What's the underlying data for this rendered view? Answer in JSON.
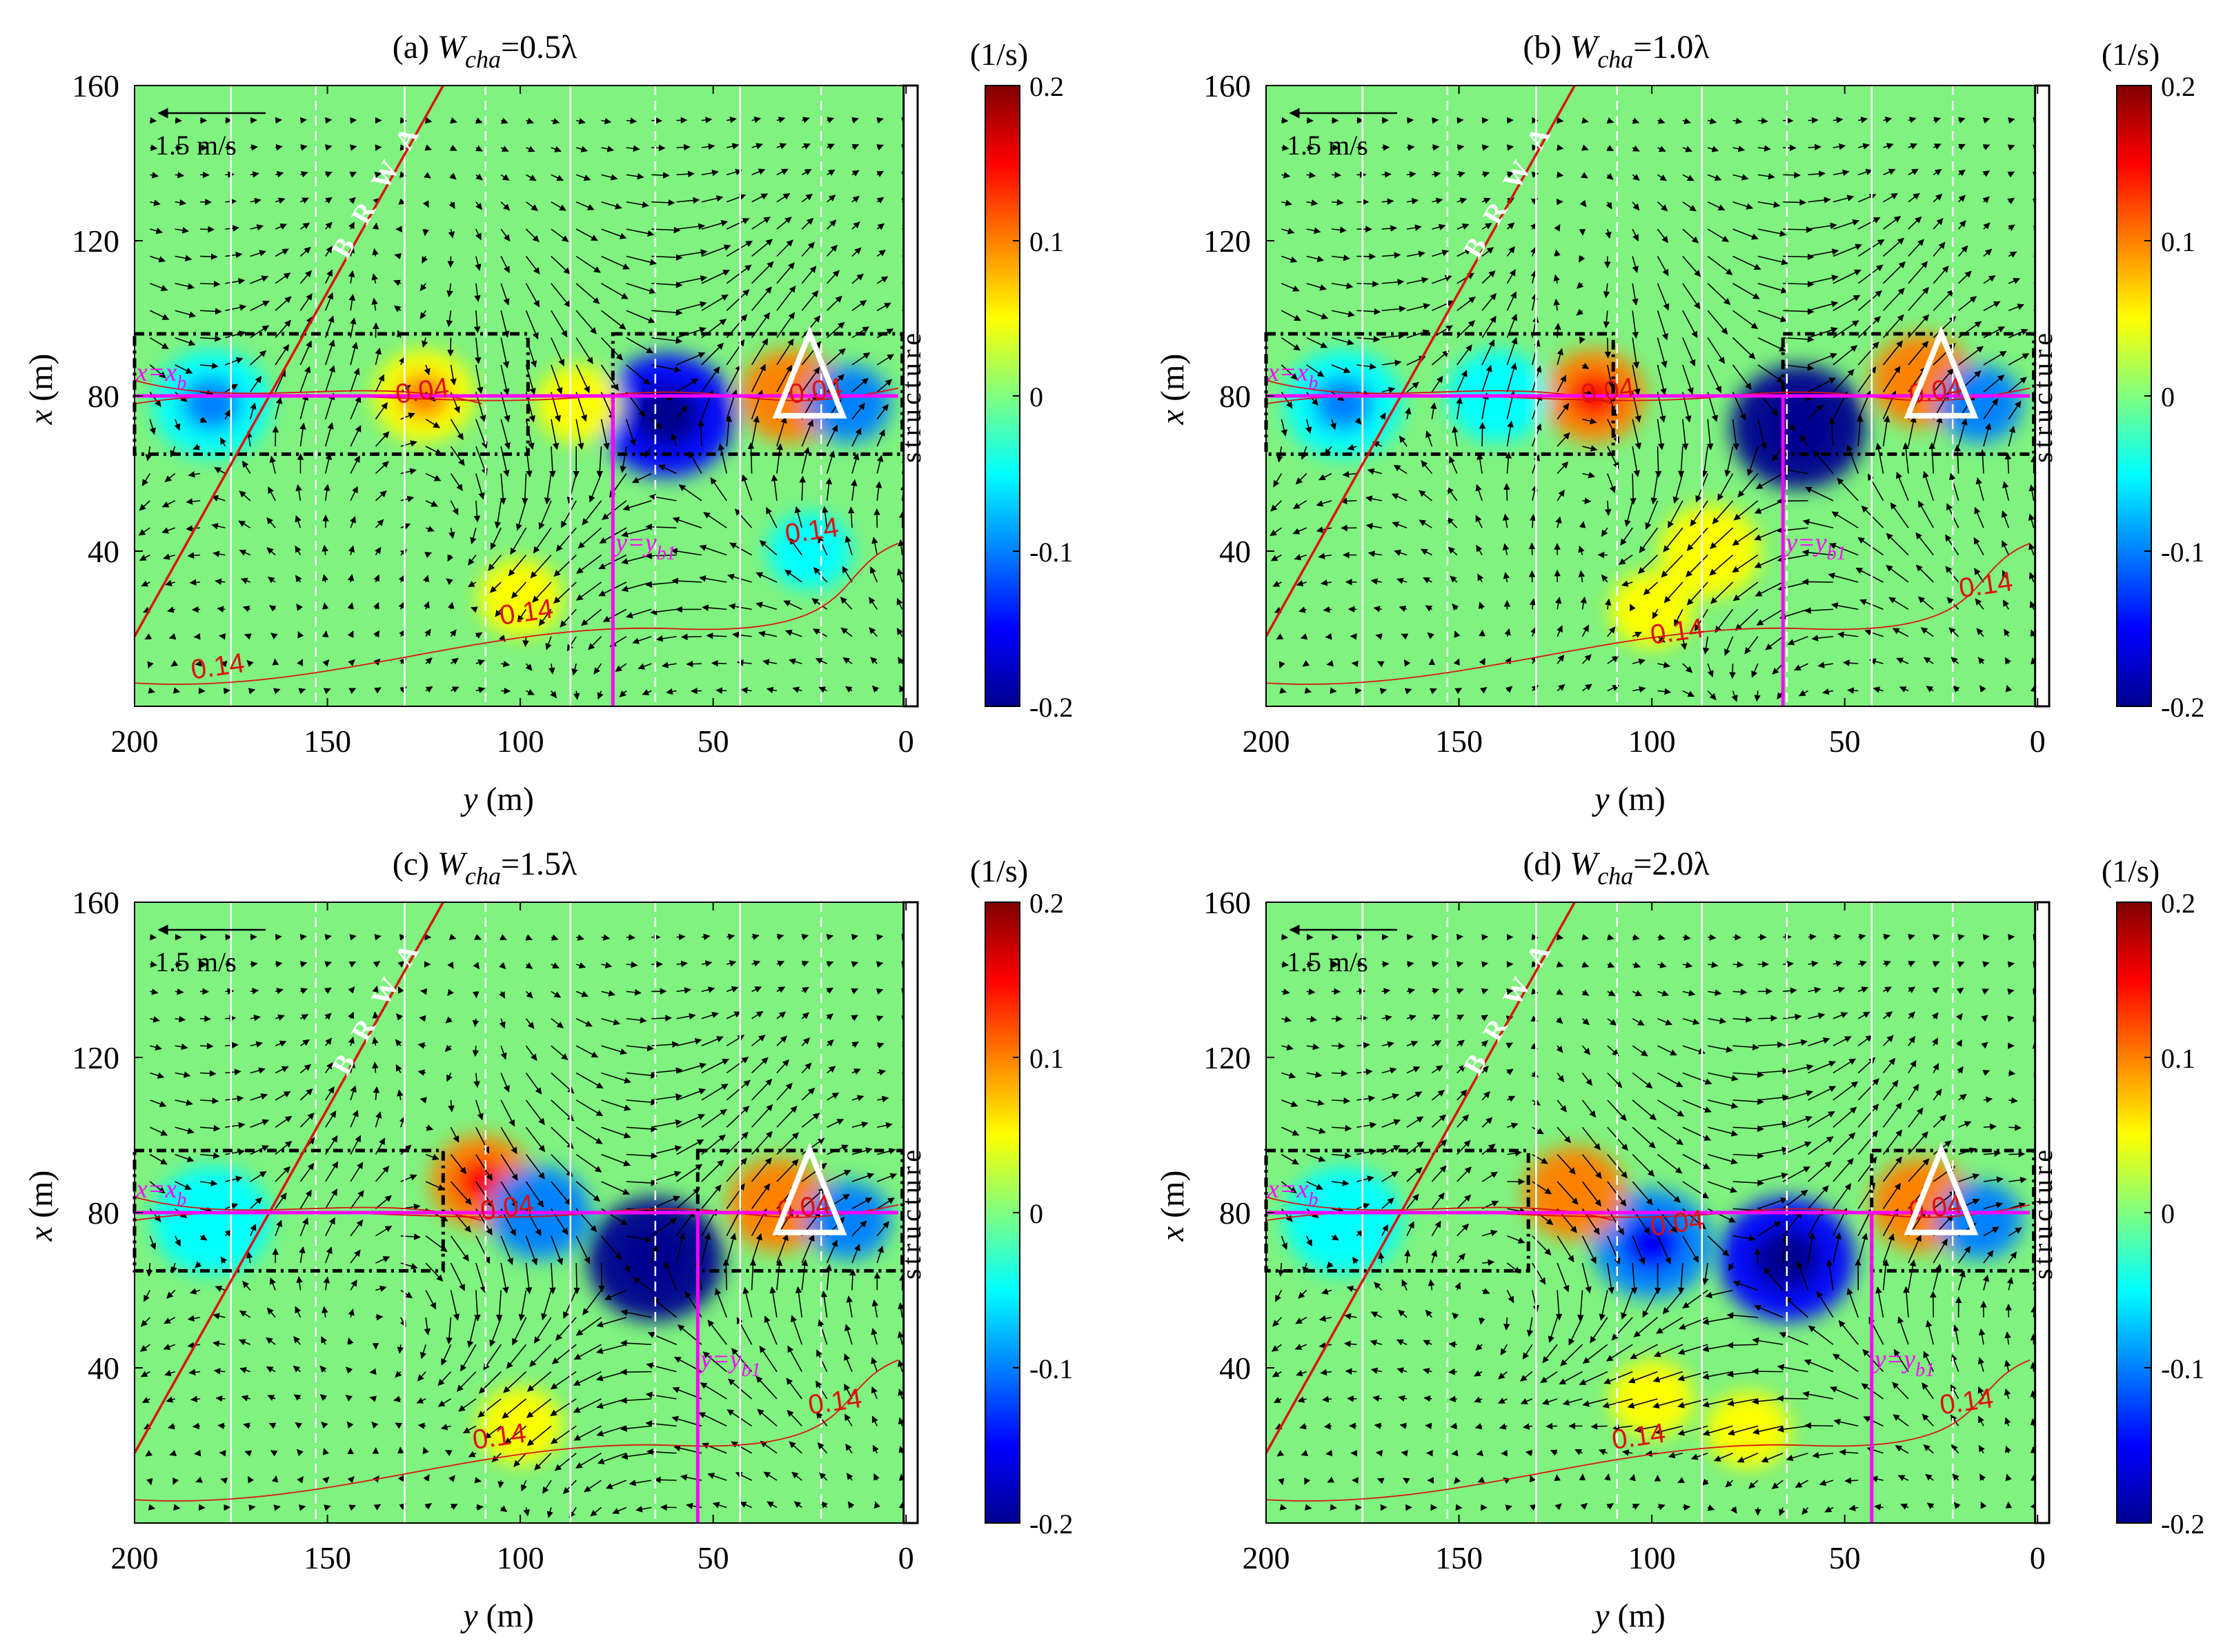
{
  "colors": {
    "background": "#7ff27f",
    "magenta": "#ff00ff",
    "red": "#dd1111",
    "white": "#ffffff",
    "black": "#000000"
  },
  "colormap": [
    "#00008f",
    "#0000ff",
    "#0080ff",
    "#00ffff",
    "#80ff80",
    "#ffff00",
    "#ff8000",
    "#ff0000",
    "#800000"
  ],
  "chart_data": [
    {
      "type": "heatmap",
      "panel": "(a)",
      "title_prefix": "(a) ",
      "title_var": "W",
      "title_sub": "cha",
      "title_suffix": "=0.5λ",
      "xlabel": "y (m)",
      "xlabel_var": "y",
      "xlabel_unit": " (m)",
      "ylabel": "x (m)",
      "ylabel_var": "x",
      "ylabel_unit": " (m)",
      "xlim": [
        200,
        -3
      ],
      "ylim": [
        0,
        160
      ],
      "xticks": [
        200,
        150,
        100,
        50,
        0
      ],
      "yticks": [
        40,
        80,
        120,
        160
      ],
      "colorbar": {
        "label": "(1/s)",
        "range": [
          -0.2,
          0.2
        ],
        "ticks": [
          0.2,
          0.1,
          0,
          -0.1,
          -0.2
        ]
      },
      "scale_arrow_label": "1.5 m/s",
      "structure_label": "structure",
      "brwa_label": "B R W A",
      "x_line_label": "x=x",
      "x_line_sub": "b",
      "y_line_label": "y=y",
      "y_line_sub": "b1",
      "x_b": 80,
      "y_b1": 76,
      "boxes": [
        {
          "y_from": 200,
          "y_to": 98,
          "x_from": 65,
          "x_to": 96
        },
        {
          "y_from": 76,
          "y_to": 1,
          "x_from": 65,
          "x_to": 96
        }
      ],
      "brwa_line": {
        "y": [
          200,
          120
        ],
        "x": [
          18,
          160
        ]
      },
      "triangle_center": {
        "y": 25,
        "x": 82
      },
      "gauge_lines_solid": [
        175,
        130,
        87,
        43
      ],
      "gauge_lines_dashed": [
        153,
        109,
        65,
        22
      ],
      "contour_labels": [
        {
          "text": "0.14",
          "y": 185,
          "x": 7
        },
        {
          "text": "0.14",
          "y": 105,
          "x": 21
        },
        {
          "text": "0.14",
          "y": 31,
          "x": 42
        },
        {
          "text": "0.04",
          "y": 132,
          "x": 78
        },
        {
          "text": "0.04",
          "y": 30,
          "x": 78
        }
      ],
      "vortices": [
        {
          "y": 62,
          "x": 75,
          "s": -0.17,
          "r": 16
        },
        {
          "y": 30,
          "x": 80,
          "s": 0.1,
          "r": 12
        },
        {
          "y": 180,
          "x": 78,
          "s": -0.07,
          "r": 14
        },
        {
          "y": 125,
          "x": 80,
          "s": 0.07,
          "r": 12
        },
        {
          "y": 85,
          "x": 78,
          "s": 0.05,
          "r": 10
        },
        {
          "y": 100,
          "x": 28,
          "s": 0.05,
          "r": 10
        },
        {
          "y": 15,
          "x": 78,
          "s": -0.08,
          "r": 10
        },
        {
          "y": 25,
          "x": 40,
          "s": -0.05,
          "r": 10
        }
      ]
    },
    {
      "type": "heatmap",
      "panel": "(b)",
      "title_prefix": "(b) ",
      "title_var": "W",
      "title_sub": "cha",
      "title_suffix": "=1.0λ",
      "xlabel": "y (m)",
      "xlabel_var": "y",
      "xlabel_unit": " (m)",
      "ylabel": "x (m)",
      "ylabel_var": "x",
      "ylabel_unit": " (m)",
      "xlim": [
        200,
        -3
      ],
      "ylim": [
        0,
        160
      ],
      "xticks": [
        200,
        150,
        100,
        50,
        0
      ],
      "yticks": [
        40,
        80,
        120,
        160
      ],
      "colorbar": {
        "label": "(1/s)",
        "range": [
          -0.2,
          0.2
        ],
        "ticks": [
          0.2,
          0.1,
          0,
          -0.1,
          -0.2
        ]
      },
      "scale_arrow_label": "1.5 m/s",
      "structure_label": "structure",
      "brwa_label": "B R W A",
      "x_line_label": "x=x",
      "x_line_sub": "b",
      "y_line_label": "y=y",
      "y_line_sub": "b1",
      "x_b": 80,
      "y_b1": 66,
      "boxes": [
        {
          "y_from": 200,
          "y_to": 110,
          "x_from": 65,
          "x_to": 96
        },
        {
          "y_from": 66,
          "y_to": 1,
          "x_from": 65,
          "x_to": 96
        }
      ],
      "brwa_line": {
        "y": [
          200,
          120
        ],
        "x": [
          18,
          160
        ]
      },
      "triangle_center": {
        "y": 25,
        "x": 82
      },
      "gauge_lines_solid": [
        175,
        130,
        87,
        43
      ],
      "gauge_lines_dashed": [
        153,
        109,
        65,
        22
      ],
      "contour_labels": [
        {
          "text": "0.14",
          "y": 100,
          "x": 16
        },
        {
          "text": "0.14",
          "y": 20,
          "x": 28
        },
        {
          "text": "0.04",
          "y": 118,
          "x": 78
        },
        {
          "text": "0.04",
          "y": 33,
          "x": 78
        }
      ],
      "vortices": [
        {
          "y": 62,
          "x": 72,
          "s": -0.2,
          "r": 16
        },
        {
          "y": 115,
          "x": 80,
          "s": 0.12,
          "r": 12
        },
        {
          "y": 30,
          "x": 84,
          "s": 0.1,
          "r": 12
        },
        {
          "y": 180,
          "x": 78,
          "s": -0.07,
          "r": 14
        },
        {
          "y": 85,
          "x": 40,
          "s": 0.06,
          "r": 12
        },
        {
          "y": 100,
          "x": 25,
          "s": 0.05,
          "r": 10
        },
        {
          "y": 15,
          "x": 78,
          "s": -0.08,
          "r": 10
        },
        {
          "y": 140,
          "x": 80,
          "s": -0.06,
          "r": 12
        }
      ]
    },
    {
      "type": "heatmap",
      "panel": "(c)",
      "title_prefix": "(c) ",
      "title_var": "W",
      "title_sub": "cha",
      "title_suffix": "=1.5λ",
      "xlabel": "y (m)",
      "xlabel_var": "y",
      "xlabel_unit": " (m)",
      "ylabel": "x (m)",
      "ylabel_var": "x",
      "ylabel_unit": " (m)",
      "xlim": [
        200,
        -3
      ],
      "ylim": [
        0,
        160
      ],
      "xticks": [
        200,
        150,
        100,
        50,
        0
      ],
      "yticks": [
        40,
        80,
        120,
        160
      ],
      "colorbar": {
        "label": "(1/s)",
        "range": [
          -0.2,
          0.2
        ],
        "ticks": [
          0.2,
          0.1,
          0,
          -0.1,
          -0.2
        ]
      },
      "scale_arrow_label": "1.5 m/s",
      "structure_label": "structure",
      "brwa_label": "B R W A",
      "x_line_label": "x=x",
      "x_line_sub": "b",
      "y_line_label": "y=y",
      "y_line_sub": "b1",
      "x_b": 80,
      "y_b1": 54,
      "boxes": [
        {
          "y_from": 200,
          "y_to": 120,
          "x_from": 65,
          "x_to": 96
        },
        {
          "y_from": 54,
          "y_to": 1,
          "x_from": 65,
          "x_to": 96
        }
      ],
      "brwa_line": {
        "y": [
          200,
          120
        ],
        "x": [
          18,
          160
        ]
      },
      "triangle_center": {
        "y": 25,
        "x": 82
      },
      "gauge_lines_solid": [
        175,
        130,
        87,
        43
      ],
      "gauge_lines_dashed": [
        153,
        109,
        65,
        22
      ],
      "contour_labels": [
        {
          "text": "0.14",
          "y": 112,
          "x": 19
        },
        {
          "text": "0.14",
          "y": 25,
          "x": 28
        },
        {
          "text": "0.04",
          "y": 110,
          "x": 78
        },
        {
          "text": "0.04",
          "y": 33,
          "x": 78
        }
      ],
      "vortices": [
        {
          "y": 65,
          "x": 68,
          "s": -0.2,
          "r": 16
        },
        {
          "y": 110,
          "x": 88,
          "s": 0.12,
          "r": 12
        },
        {
          "y": 33,
          "x": 82,
          "s": 0.1,
          "r": 12
        },
        {
          "y": 95,
          "x": 80,
          "s": -0.1,
          "r": 12
        },
        {
          "y": 180,
          "x": 78,
          "s": -0.06,
          "r": 14
        },
        {
          "y": 100,
          "x": 25,
          "s": 0.05,
          "r": 10
        },
        {
          "y": 15,
          "x": 78,
          "s": -0.08,
          "r": 10
        }
      ]
    },
    {
      "type": "heatmap",
      "panel": "(d)",
      "title_prefix": "(d) ",
      "title_var": "W",
      "title_sub": "cha",
      "title_suffix": "=2.0λ",
      "xlabel": "y (m)",
      "xlabel_var": "y",
      "xlabel_unit": " (m)",
      "ylabel": "x (m)",
      "ylabel_var": "x",
      "ylabel_unit": " (m)",
      "xlim": [
        200,
        -3
      ],
      "ylim": [
        0,
        160
      ],
      "xticks": [
        200,
        150,
        100,
        50,
        0
      ],
      "yticks": [
        40,
        80,
        120,
        160
      ],
      "colorbar": {
        "label": "(1/s)",
        "range": [
          -0.2,
          0.2
        ],
        "ticks": [
          0.2,
          0.1,
          0,
          -0.1,
          -0.2
        ]
      },
      "scale_arrow_label": "1.5 m/s",
      "structure_label": "structure",
      "brwa_label": "B R W A",
      "x_line_label": "x=x",
      "x_line_sub": "b",
      "y_line_label": "y=y",
      "y_line_sub": "b1",
      "x_b": 80,
      "y_b1": 43,
      "boxes": [
        {
          "y_from": 200,
          "y_to": 132,
          "x_from": 65,
          "x_to": 96
        },
        {
          "y_from": 43,
          "y_to": 1,
          "x_from": 65,
          "x_to": 96
        }
      ],
      "brwa_line": {
        "y": [
          200,
          120
        ],
        "x": [
          18,
          160
        ]
      },
      "triangle_center": {
        "y": 25,
        "x": 82
      },
      "gauge_lines_solid": [
        175,
        130,
        87,
        43
      ],
      "gauge_lines_dashed": [
        153,
        109,
        65,
        22
      ],
      "contour_labels": [
        {
          "text": "0.14",
          "y": 110,
          "x": 19
        },
        {
          "text": "0.14",
          "y": 25,
          "x": 28
        },
        {
          "text": "0.04",
          "y": 100,
          "x": 74
        },
        {
          "text": "0.04",
          "y": 33,
          "x": 78
        }
      ],
      "vortices": [
        {
          "y": 65,
          "x": 68,
          "s": -0.15,
          "r": 16
        },
        {
          "y": 100,
          "x": 72,
          "s": -0.12,
          "r": 14
        },
        {
          "y": 120,
          "x": 85,
          "s": 0.08,
          "r": 12
        },
        {
          "y": 30,
          "x": 82,
          "s": 0.1,
          "r": 12
        },
        {
          "y": 100,
          "x": 32,
          "s": 0.06,
          "r": 10
        },
        {
          "y": 75,
          "x": 24,
          "s": 0.06,
          "r": 10
        },
        {
          "y": 180,
          "x": 78,
          "s": -0.06,
          "r": 14
        },
        {
          "y": 15,
          "x": 78,
          "s": -0.08,
          "r": 10
        }
      ]
    }
  ]
}
